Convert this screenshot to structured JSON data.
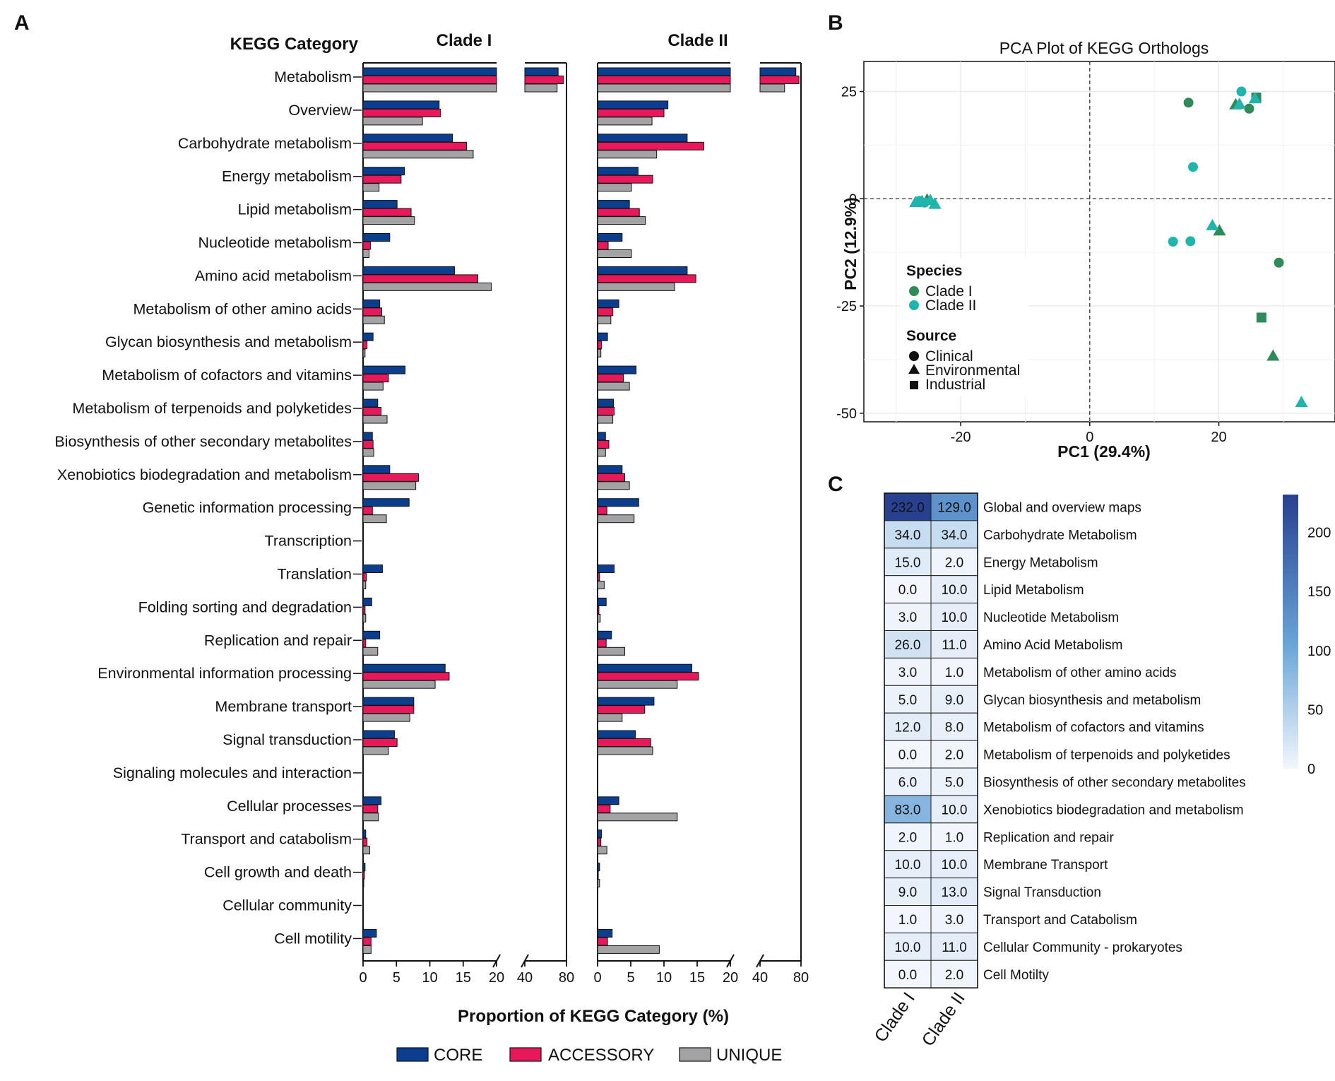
{
  "panel_letters": {
    "a": "A",
    "b": "B",
    "c": "C"
  },
  "panel_a": {
    "category_header": "KEGG Category",
    "clade1_title": "Clade I",
    "clade2_title": "Clade II",
    "xlabel": "Proportion of KEGG Category (%)",
    "tick_labels": [
      "0",
      "5",
      "10",
      "15",
      "20",
      "40",
      "80"
    ],
    "legend": [
      {
        "name": "CORE",
        "color": "#0b3e8f"
      },
      {
        "name": "ACCESSORY",
        "color": "#e8195a"
      },
      {
        "name": "UNIQUE",
        "color": "#a3a3a6"
      }
    ]
  },
  "panel_b": {
    "title": "PCA Plot of KEGG Orthologs",
    "xlabel": "PC1 (29.4%)",
    "ylabel": "PC2 (12.9%)",
    "xticks": [
      "-20",
      "0",
      "20"
    ],
    "yticks": [
      "25",
      "0",
      "-25",
      "-50"
    ],
    "legend_species_title": "Species",
    "legend_species": [
      {
        "name": "Clade I",
        "color": "#2e8b57"
      },
      {
        "name": "Clade II",
        "color": "#1fb5ad"
      }
    ],
    "legend_source_title": "Source",
    "legend_source": [
      "Clinical",
      "Environmental",
      "Industrial"
    ]
  },
  "panel_c": {
    "columns": [
      "Clade I",
      "Clade II"
    ],
    "colorbar_ticks": [
      "200",
      "150",
      "100",
      "50",
      "0"
    ]
  },
  "chart_data": [
    {
      "type": "bar",
      "orientation": "horizontal",
      "title": "Clade I",
      "xlabel": "Proportion of KEGG Category (%)",
      "axis_break": [
        20,
        40
      ],
      "xlim": [
        0,
        80
      ],
      "categories": [
        "Metabolism",
        "Overview",
        "Carbohydrate metabolism",
        "Energy metabolism",
        "Lipid metabolism",
        "Nucleotide metabolism",
        "Amino acid metabolism",
        "Metabolism of other amino acids",
        "Glycan biosynthesis and metabolism",
        "Metabolism of cofactors and vitamins",
        "Metabolism of terpenoids and polyketides",
        "Biosynthesis of other secondary metabolites",
        "Xenobiotics biodegradation and metabolism",
        "Genetic information processing",
        "Transcription",
        "Translation",
        "Folding sorting and degradation",
        "Replication and repair",
        "Environmental information processing",
        "Membrane transport",
        "Signal transduction",
        "Signaling molecules and interaction",
        "Cellular processes",
        "Transport and catabolism",
        "Cell growth and death",
        "Cellular community",
        "Cell motility"
      ],
      "series": [
        {
          "name": "CORE",
          "values": [
            72,
            11.4,
            13.4,
            6.2,
            5.1,
            4.0,
            13.7,
            2.5,
            1.5,
            6.3,
            2.2,
            1.4,
            4.0,
            6.9,
            0,
            2.9,
            1.3,
            2.5,
            12.3,
            7.6,
            4.7,
            0,
            2.7,
            0.4,
            0.3,
            0,
            2.0
          ]
        },
        {
          "name": "ACCESSORY",
          "values": [
            77,
            11.6,
            15.5,
            5.7,
            7.2,
            1.1,
            17.2,
            2.8,
            0.6,
            3.8,
            2.7,
            1.5,
            8.3,
            1.4,
            0,
            0.5,
            0.3,
            0.4,
            12.9,
            7.6,
            5.1,
            0,
            2.2,
            0.6,
            0.2,
            0,
            1.2
          ]
        },
        {
          "name": "UNIQUE",
          "values": [
            71,
            8.9,
            16.5,
            2.4,
            7.7,
            0.9,
            19.2,
            3.2,
            0.3,
            3.0,
            3.6,
            1.6,
            7.9,
            3.5,
            0,
            0.4,
            0.4,
            2.2,
            10.8,
            7.0,
            3.8,
            0,
            2.3,
            1.0,
            0.1,
            0,
            1.2
          ]
        }
      ]
    },
    {
      "type": "bar",
      "orientation": "horizontal",
      "title": "Clade II",
      "xlabel": "Proportion of KEGG Category (%)",
      "axis_break": [
        20,
        40
      ],
      "xlim": [
        0,
        80
      ],
      "categories": [
        "Metabolism",
        "Overview",
        "Carbohydrate metabolism",
        "Energy metabolism",
        "Lipid metabolism",
        "Nucleotide metabolism",
        "Amino acid metabolism",
        "Metabolism of other amino acids",
        "Glycan biosynthesis and metabolism",
        "Metabolism of cofactors and vitamins",
        "Metabolism of terpenoids and polyketides",
        "Biosynthesis of other secondary metabolites",
        "Xenobiotics biodegradation and metabolism",
        "Genetic information processing",
        "Transcription",
        "Translation",
        "Folding sorting and degradation",
        "Replication and repair",
        "Environmental information processing",
        "Membrane transport",
        "Signal transduction",
        "Signaling molecules and interaction",
        "Cellular processes",
        "Transport and catabolism",
        "Cell growth and death",
        "Cellular community",
        "Cell motility"
      ],
      "series": [
        {
          "name": "CORE",
          "values": [
            75,
            10.6,
            13.5,
            6.1,
            4.8,
            3.7,
            13.5,
            3.2,
            1.5,
            5.8,
            2.4,
            1.2,
            3.7,
            6.2,
            0,
            2.5,
            1.3,
            2.1,
            14.2,
            8.5,
            5.7,
            0,
            3.2,
            0.6,
            0.3,
            0,
            2.2
          ]
        },
        {
          "name": "ACCESSORY",
          "values": [
            78,
            10.0,
            16.0,
            8.3,
            6.3,
            1.6,
            14.8,
            2.3,
            0.6,
            3.9,
            2.5,
            1.7,
            4.1,
            1.4,
            0,
            0.3,
            0.2,
            1.3,
            15.2,
            7.1,
            8.0,
            0,
            1.9,
            0.5,
            0.1,
            0,
            1.5
          ]
        },
        {
          "name": "UNIQUE",
          "values": [
            64,
            8.2,
            8.9,
            5.1,
            7.2,
            5.1,
            11.6,
            2.0,
            0.5,
            4.8,
            2.3,
            1.2,
            4.8,
            5.5,
            0,
            1.0,
            0.4,
            4.1,
            12.0,
            3.7,
            8.3,
            0,
            12.0,
            1.4,
            0.3,
            0,
            9.3
          ]
        }
      ]
    },
    {
      "type": "scatter",
      "title": "PCA Plot of KEGG Orthologs",
      "xlabel": "PC1 (29.4%)",
      "ylabel": "PC2 (12.9%)",
      "xlim": [
        -35,
        38
      ],
      "ylim": [
        -52,
        32
      ],
      "reference_lines": {
        "x": 0,
        "y": 0
      },
      "points": [
        {
          "x": -26.0,
          "y": -0.6,
          "clade": "Clade I",
          "source": "Environmental"
        },
        {
          "x": -25.2,
          "y": -0.2,
          "clade": "Clade I",
          "source": "Environmental"
        },
        {
          "x": -27.0,
          "y": -0.8,
          "clade": "Clade II",
          "source": "Environmental"
        },
        {
          "x": -24.7,
          "y": -0.3,
          "clade": "Clade II",
          "source": "Environmental"
        },
        {
          "x": -24.0,
          "y": -1.2,
          "clade": "Clade II",
          "source": "Environmental"
        },
        {
          "x": -25.6,
          "y": -0.9,
          "clade": "Clade II",
          "source": "Clinical"
        },
        {
          "x": -26.4,
          "y": -0.5,
          "clade": "Clade II",
          "source": "Clinical"
        },
        {
          "x": 15.3,
          "y": 22.4,
          "clade": "Clade I",
          "source": "Clinical"
        },
        {
          "x": 22.6,
          "y": 22.0,
          "clade": "Clade I",
          "source": "Environmental"
        },
        {
          "x": 24.7,
          "y": 21.0,
          "clade": "Clade I",
          "source": "Clinical"
        },
        {
          "x": 25.8,
          "y": 23.6,
          "clade": "Clade I",
          "source": "Industrial"
        },
        {
          "x": 23.5,
          "y": 25.0,
          "clade": "Clade II",
          "source": "Clinical"
        },
        {
          "x": 23.2,
          "y": 22.1,
          "clade": "Clade II",
          "source": "Environmental"
        },
        {
          "x": 25.6,
          "y": 23.4,
          "clade": "Clade II",
          "source": "Environmental"
        },
        {
          "x": 16.0,
          "y": 7.4,
          "clade": "Clade II",
          "source": "Clinical"
        },
        {
          "x": 20.1,
          "y": -7.4,
          "clade": "Clade I",
          "source": "Environmental"
        },
        {
          "x": 19.0,
          "y": -6.2,
          "clade": "Clade II",
          "source": "Environmental"
        },
        {
          "x": 12.9,
          "y": -10.0,
          "clade": "Clade II",
          "source": "Clinical"
        },
        {
          "x": 15.6,
          "y": -9.9,
          "clade": "Clade II",
          "source": "Clinical"
        },
        {
          "x": 29.3,
          "y": -14.9,
          "clade": "Clade I",
          "source": "Clinical"
        },
        {
          "x": 26.6,
          "y": -27.7,
          "clade": "Clade I",
          "source": "Industrial"
        },
        {
          "x": 28.4,
          "y": -36.6,
          "clade": "Clade I",
          "source": "Environmental"
        },
        {
          "x": 32.8,
          "y": -47.4,
          "clade": "Clade II",
          "source": "Environmental"
        }
      ]
    },
    {
      "type": "heatmap",
      "columns": [
        "Clade I",
        "Clade II"
      ],
      "rows": [
        "Global and overview maps",
        "Carbohydrate Metabolism",
        "Energy Metabolism",
        "Lipid Metabolism",
        "Nucleotide Metabolism",
        "Amino Acid Metabolism",
        "Metabolism of other amino acids",
        "Glycan biosynthesis and metabolism",
        "Metabolism of cofactors and vitamins",
        "Metabolism of terpenoids and polyketides",
        "Biosynthesis of other secondary metabolites",
        "Xenobiotics biodegradation and metabolism",
        "Replication and repair",
        "Membrane Transport",
        "Signal Transduction",
        "Transport and Catabolism",
        "Cellular Community - prokaryotes",
        "Cell Motilty"
      ],
      "values": [
        [
          232.0,
          129.0
        ],
        [
          34.0,
          34.0
        ],
        [
          15.0,
          2.0
        ],
        [
          0.0,
          10.0
        ],
        [
          3.0,
          10.0
        ],
        [
          26.0,
          11.0
        ],
        [
          3.0,
          1.0
        ],
        [
          5.0,
          9.0
        ],
        [
          12.0,
          8.0
        ],
        [
          0.0,
          2.0
        ],
        [
          6.0,
          5.0
        ],
        [
          83.0,
          10.0
        ],
        [
          2.0,
          1.0
        ],
        [
          10.0,
          10.0
        ],
        [
          9.0,
          13.0
        ],
        [
          1.0,
          3.0
        ],
        [
          10.0,
          11.0
        ],
        [
          0.0,
          2.0
        ]
      ],
      "value_labels": [
        [
          "232.0",
          "129.0"
        ],
        [
          "34.0",
          "34.0"
        ],
        [
          "15.0",
          "2.0"
        ],
        [
          "0.0",
          "10.0"
        ],
        [
          "3.0",
          "10.0"
        ],
        [
          "26.0",
          "11.0"
        ],
        [
          "3.0",
          "1.0"
        ],
        [
          "5.0",
          "9.0"
        ],
        [
          "12.0",
          "8.0"
        ],
        [
          "0.0",
          "2.0"
        ],
        [
          "6.0",
          "5.0"
        ],
        [
          "83.0",
          "10.0"
        ],
        [
          "2.0",
          "1.0"
        ],
        [
          "10.0",
          "10.0"
        ],
        [
          "9.0",
          "13.0"
        ],
        [
          "1.0",
          "3.0"
        ],
        [
          "10.0",
          "11.0"
        ],
        [
          "0.0",
          "2.0"
        ]
      ],
      "color_range": [
        0,
        232
      ],
      "colorbar_ticks": [
        0,
        50,
        100,
        150,
        200
      ]
    }
  ]
}
